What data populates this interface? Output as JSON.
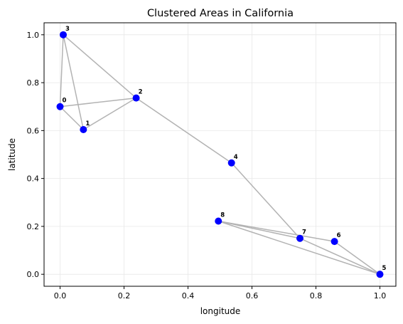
{
  "chart_data": {
    "type": "scatter",
    "title": "Clustered Areas in California",
    "xlabel": "longitude",
    "ylabel": "latitude",
    "xlim": [
      -0.05,
      1.05
    ],
    "ylim": [
      -0.05,
      1.05
    ],
    "xticks": [
      "0.0",
      "0.2",
      "0.4",
      "0.6",
      "0.8",
      "1.0"
    ],
    "yticks": [
      "0.0",
      "0.2",
      "0.4",
      "0.6",
      "0.8",
      "1.0"
    ],
    "grid": true,
    "point_color": "#0000ff",
    "edge_color": "#b3b3b3",
    "points": [
      {
        "label": "0",
        "x": 0.0,
        "y": 0.7
      },
      {
        "label": "1",
        "x": 0.073,
        "y": 0.604
      },
      {
        "label": "2",
        "x": 0.238,
        "y": 0.736
      },
      {
        "label": "3",
        "x": 0.01,
        "y": 1.0
      },
      {
        "label": "4",
        "x": 0.536,
        "y": 0.465
      },
      {
        "label": "5",
        "x": 1.0,
        "y": 0.0
      },
      {
        "label": "6",
        "x": 0.858,
        "y": 0.137
      },
      {
        "label": "7",
        "x": 0.75,
        "y": 0.15
      },
      {
        "label": "8",
        "x": 0.495,
        "y": 0.222
      }
    ],
    "edges": [
      [
        0,
        1
      ],
      [
        0,
        2
      ],
      [
        0,
        3
      ],
      [
        1,
        2
      ],
      [
        1,
        3
      ],
      [
        2,
        3
      ],
      [
        2,
        4
      ],
      [
        4,
        7
      ],
      [
        7,
        8
      ],
      [
        6,
        8
      ],
      [
        5,
        8
      ],
      [
        5,
        6
      ],
      [
        5,
        7
      ]
    ]
  }
}
